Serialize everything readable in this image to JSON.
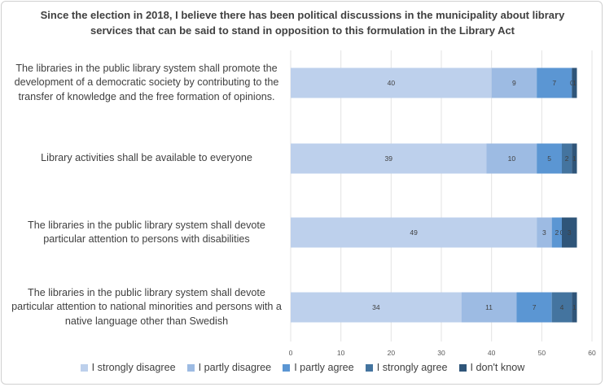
{
  "chart_data": {
    "type": "bar",
    "orientation": "horizontal",
    "stacked": true,
    "title": "Since the election in 2018, I believe there has been political discussions in the municipality about library services that can be said to stand in opposition to this formulation in the Library Act",
    "categories": [
      "The libraries in the public library system shall promote the development of a democratic society by contributing to the transfer of knowledge and the free formation of opinions.",
      "Library activities shall be available to everyone",
      "The libraries in the public library system shall devote particular attention to persons with disabilities",
      "The libraries in the public library system shall devote particular attention to national minorities and persons with a native language other than Swedish"
    ],
    "series": [
      {
        "name": "I strongly disagree",
        "color": "#bdd0ec",
        "values": [
          40,
          39,
          49,
          34
        ]
      },
      {
        "name": "I partly disagree",
        "color": "#9dbbe3",
        "values": [
          9,
          10,
          3,
          11
        ]
      },
      {
        "name": "I partly agree",
        "color": "#5b96d3",
        "values": [
          7,
          5,
          2,
          7
        ]
      },
      {
        "name": "I strongly agree",
        "color": "#44749f",
        "values": [
          0,
          2,
          0,
          4
        ]
      },
      {
        "name": "I don't know",
        "color": "#2f5579",
        "values": [
          1,
          1,
          3,
          1
        ]
      }
    ],
    "xlim": [
      0,
      60
    ],
    "xticks": [
      0,
      10,
      20,
      30,
      40,
      50,
      60
    ],
    "grid": true,
    "legend_position": "bottom"
  }
}
